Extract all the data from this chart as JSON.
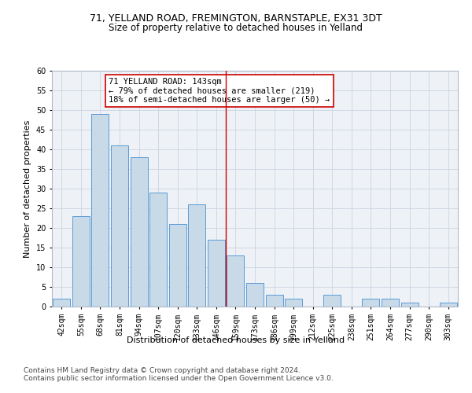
{
  "title1": "71, YELLAND ROAD, FREMINGTON, BARNSTAPLE, EX31 3DT",
  "title2": "Size of property relative to detached houses in Yelland",
  "xlabel": "Distribution of detached houses by size in Yelland",
  "ylabel": "Number of detached properties",
  "bar_labels": [
    "42sqm",
    "55sqm",
    "68sqm",
    "81sqm",
    "94sqm",
    "107sqm",
    "120sqm",
    "133sqm",
    "146sqm",
    "159sqm",
    "173sqm",
    "186sqm",
    "199sqm",
    "212sqm",
    "225sqm",
    "238sqm",
    "251sqm",
    "264sqm",
    "277sqm",
    "290sqm",
    "303sqm"
  ],
  "bar_values": [
    2,
    23,
    49,
    41,
    38,
    29,
    21,
    26,
    17,
    13,
    6,
    3,
    2,
    0,
    3,
    0,
    2,
    2,
    1,
    0,
    1
  ],
  "bar_color": "#c8d9e8",
  "bar_edge_color": "#5b9bd5",
  "grid_color": "#d0d8e4",
  "background_color": "#eef2f7",
  "vline_x": 8.5,
  "vline_color": "#cc0000",
  "annotation_text": "71 YELLAND ROAD: 143sqm\n← 79% of detached houses are smaller (219)\n18% of semi-detached houses are larger (50) →",
  "annotation_box_color": "#ffffff",
  "annotation_box_edge": "#cc0000",
  "ylim": [
    0,
    60
  ],
  "yticks": [
    0,
    5,
    10,
    15,
    20,
    25,
    30,
    35,
    40,
    45,
    50,
    55,
    60
  ],
  "footer1": "Contains HM Land Registry data © Crown copyright and database right 2024.",
  "footer2": "Contains public sector information licensed under the Open Government Licence v3.0.",
  "title1_fontsize": 9,
  "title2_fontsize": 8.5,
  "axis_label_fontsize": 8,
  "tick_fontsize": 7,
  "annotation_fontsize": 7.5,
  "footer_fontsize": 6.5
}
